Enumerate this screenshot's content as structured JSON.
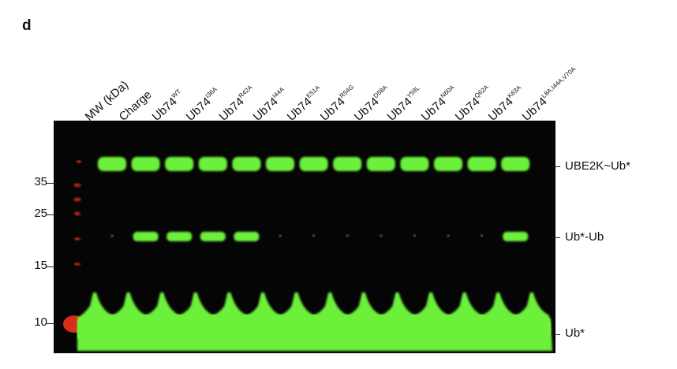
{
  "figure": {
    "panel_letter": "d",
    "lanes": [
      {
        "base": "MW (kDa)",
        "sup": ""
      },
      {
        "base": "Charge",
        "sup": ""
      },
      {
        "base": "Ub74",
        "sup": "WT"
      },
      {
        "base": "Ub74",
        "sup": "I36A"
      },
      {
        "base": "Ub74",
        "sup": "R42A"
      },
      {
        "base": "Ub74",
        "sup": "I44A"
      },
      {
        "base": "Ub74",
        "sup": "E51A"
      },
      {
        "base": "Ub74",
        "sup": "R54G"
      },
      {
        "base": "Ub74",
        "sup": "D58A"
      },
      {
        "base": "Ub74",
        "sup": "Y59L"
      },
      {
        "base": "Ub74",
        "sup": "N60A"
      },
      {
        "base": "Ub74",
        "sup": "Q62A"
      },
      {
        "base": "Ub74",
        "sup": "K63A"
      },
      {
        "base": "Ub74",
        "sup": "L8A,I44A,V70A"
      }
    ],
    "mw_markers": [
      "35",
      "25",
      "15",
      "10"
    ],
    "band_labels": [
      "UBE2K~Ub*",
      "Ub*-Ub",
      "Ub*"
    ],
    "colors": {
      "background": "#050505",
      "green_band": "#6cf03a",
      "ladder_red": "#e0301a"
    },
    "ub_ub_band_present": [
      false,
      true,
      true,
      true,
      true,
      false,
      false,
      false,
      false,
      false,
      false,
      false,
      true
    ]
  }
}
